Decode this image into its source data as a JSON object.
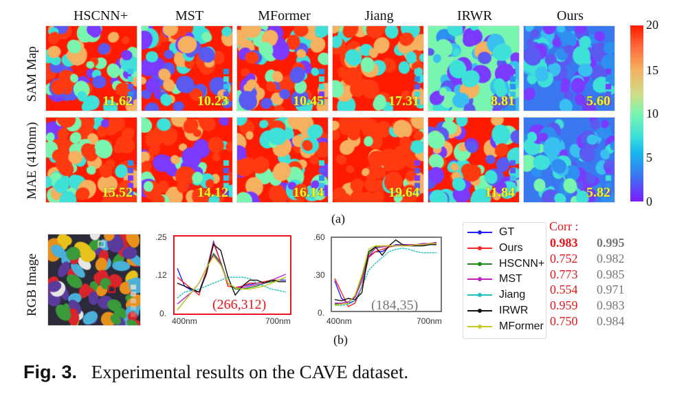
{
  "figure": {
    "methods": [
      "HSCNN+",
      "MST",
      "MFormer",
      "Jiang",
      "IRWR",
      "Ours"
    ],
    "rows": [
      {
        "label": "SAM Map",
        "metrics": [
          "11.62",
          "10.23",
          "10.45",
          "17.31",
          "8.81",
          "5.60"
        ],
        "severity": [
          0.6,
          0.55,
          0.6,
          0.85,
          0.35,
          0.12
        ]
      },
      {
        "label": "MAE (410nm)",
        "metrics": [
          "15.52",
          "14.12",
          "16.14",
          "19.64",
          "11.84",
          "5.82"
        ],
        "severity": [
          0.75,
          0.7,
          0.75,
          0.97,
          0.55,
          0.2
        ]
      }
    ],
    "colorbar": {
      "ticks": [
        "20",
        "15",
        "10",
        "5",
        "0"
      ],
      "range": [
        0,
        20
      ]
    },
    "sublabel_a": "(a)",
    "sublabel_b": "(b)",
    "rgb_label": "RGB Image",
    "caption_fig": "Fig. 3.",
    "caption_text": "Experimental results on the CAVE dataset."
  },
  "legend": {
    "items": [
      {
        "name": "GT",
        "color": "#1f1fff"
      },
      {
        "name": "Ours",
        "color": "#ff2020"
      },
      {
        "name": "HSCNN+",
        "color": "#1a8a1a"
      },
      {
        "name": "MST",
        "color": "#c020c0"
      },
      {
        "name": "Jiang",
        "color": "#20c0c0"
      },
      {
        "name": "IRWR",
        "color": "#111111"
      },
      {
        "name": "MFormer",
        "color": "#c8c820"
      }
    ]
  },
  "correlation": {
    "header": "Corr :",
    "patch1": [
      "0.983",
      "0.752",
      "0.773",
      "0.554",
      "0.959",
      "0.750"
    ],
    "patch2": [
      "0.995",
      "0.982",
      "0.985",
      "0.971",
      "0.983",
      "0.984"
    ]
  },
  "chart_data": [
    {
      "type": "line",
      "title": "(266,312)",
      "xlabel": "",
      "ylabel": "",
      "x_tick_labels": [
        "400nm",
        "700nm"
      ],
      "y_tick_labels": [
        "0.",
        ".12",
        ".25"
      ],
      "ylim": [
        0,
        0.25
      ],
      "xlim": [
        400,
        700
      ],
      "x": [
        400,
        420,
        440,
        460,
        480,
        500,
        520,
        540,
        560,
        580,
        600,
        620,
        640,
        660,
        680,
        700
      ],
      "series": [
        {
          "name": "GT",
          "values": [
            0.15,
            0.09,
            0.075,
            0.07,
            0.14,
            0.24,
            0.17,
            0.09,
            0.085,
            0.09,
            0.095,
            0.1,
            0.105,
            0.105,
            0.11,
            0.11
          ]
        },
        {
          "name": "Ours",
          "values": [
            0.12,
            0.1,
            0.08,
            0.06,
            0.14,
            0.235,
            0.17,
            0.09,
            0.085,
            0.09,
            0.1,
            0.1,
            0.105,
            0.11,
            0.11,
            0.12
          ]
        },
        {
          "name": "HSCNN+",
          "values": [
            0.01,
            0.04,
            0.07,
            0.1,
            0.15,
            0.2,
            0.17,
            0.1,
            0.08,
            0.08,
            0.085,
            0.09,
            0.1,
            0.105,
            0.11,
            0.12
          ]
        },
        {
          "name": "MST",
          "values": [
            0.03,
            0.05,
            0.07,
            0.1,
            0.15,
            0.195,
            0.165,
            0.1,
            0.085,
            0.085,
            0.09,
            0.095,
            0.1,
            0.11,
            0.12,
            0.13
          ]
        },
        {
          "name": "Jiang",
          "values": [
            0.05,
            0.07,
            0.075,
            0.08,
            0.09,
            0.1,
            0.11,
            0.12,
            0.12,
            0.12,
            0.115,
            0.1,
            0.09,
            0.08,
            0.075,
            0.07
          ]
        },
        {
          "name": "IRWR",
          "values": [
            0.1,
            0.09,
            0.08,
            0.07,
            0.13,
            0.23,
            0.21,
            0.12,
            0.06,
            0.09,
            0.11,
            0.11,
            0.1,
            0.11,
            0.105,
            0.105
          ]
        },
        {
          "name": "MFormer",
          "values": [
            0.01,
            0.04,
            0.07,
            0.1,
            0.15,
            0.19,
            0.16,
            0.1,
            0.085,
            0.08,
            0.08,
            0.085,
            0.09,
            0.1,
            0.11,
            0.12
          ]
        }
      ]
    },
    {
      "type": "line",
      "title": "(184,35)",
      "xlabel": "",
      "ylabel": "",
      "x_tick_labels": [
        "400nm",
        "700nm"
      ],
      "y_tick_labels": [
        "0.",
        ".30",
        ".60"
      ],
      "ylim": [
        0,
        0.6
      ],
      "xlim": [
        400,
        700
      ],
      "x": [
        400,
        420,
        440,
        460,
        480,
        500,
        520,
        540,
        560,
        580,
        600,
        620,
        640,
        660,
        680,
        700
      ],
      "series": [
        {
          "name": "GT",
          "values": [
            0.25,
            0.1,
            0.06,
            0.08,
            0.2,
            0.46,
            0.5,
            0.5,
            0.54,
            0.56,
            0.56,
            0.55,
            0.56,
            0.56,
            0.57,
            0.58
          ]
        },
        {
          "name": "Ours",
          "values": [
            0.27,
            0.15,
            0.03,
            0.06,
            0.2,
            0.45,
            0.5,
            0.52,
            0.54,
            0.55,
            0.56,
            0.56,
            0.56,
            0.56,
            0.57,
            0.57
          ]
        },
        {
          "name": "HSCNN+",
          "values": [
            0.05,
            0.06,
            0.07,
            0.12,
            0.28,
            0.48,
            0.54,
            0.55,
            0.55,
            0.55,
            0.55,
            0.55,
            0.56,
            0.56,
            0.57,
            0.57
          ]
        },
        {
          "name": "MST",
          "values": [
            0.06,
            0.06,
            0.07,
            0.11,
            0.25,
            0.46,
            0.53,
            0.54,
            0.55,
            0.55,
            0.56,
            0.56,
            0.56,
            0.57,
            0.57,
            0.58
          ]
        },
        {
          "name": "Jiang",
          "values": [
            0.04,
            0.04,
            0.05,
            0.08,
            0.2,
            0.34,
            0.4,
            0.45,
            0.5,
            0.52,
            0.53,
            0.52,
            0.5,
            0.49,
            0.49,
            0.49
          ]
        },
        {
          "name": "IRWR",
          "values": [
            0.09,
            0.08,
            0.1,
            0.09,
            0.15,
            0.5,
            0.54,
            0.47,
            0.55,
            0.6,
            0.56,
            0.55,
            0.55,
            0.55,
            0.56,
            0.56
          ]
        },
        {
          "name": "MFormer",
          "values": [
            0.04,
            0.05,
            0.06,
            0.13,
            0.3,
            0.52,
            0.55,
            0.55,
            0.55,
            0.55,
            0.55,
            0.55,
            0.56,
            0.56,
            0.57,
            0.57
          ]
        }
      ]
    }
  ]
}
